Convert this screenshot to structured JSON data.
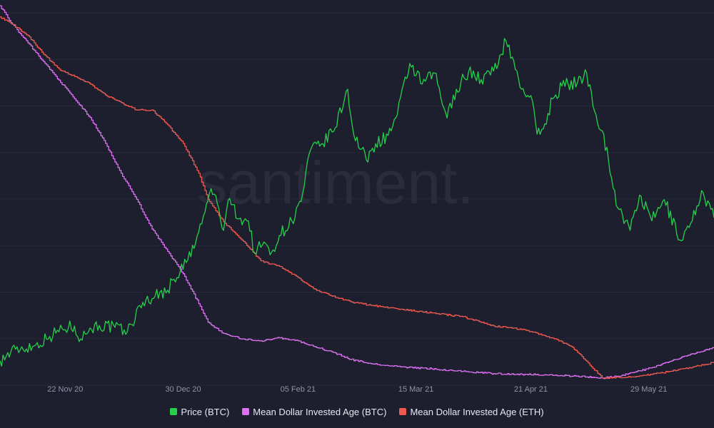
{
  "watermark": "santiment.",
  "chart_data": {
    "type": "line",
    "title": "",
    "xlabel": "",
    "ylabel": "",
    "grid": true,
    "legend_position": "bottom-center",
    "x_ticks": [
      "22 Nov 20",
      "30 Dec 20",
      "05 Feb 21",
      "15 Mar 21",
      "21 Apr 21",
      "29 May 21"
    ],
    "x_range": [
      "2020-11-01",
      "2021-06-19"
    ],
    "series": [
      {
        "name": "Price (BTC)",
        "color": "#26d04a",
        "axis_range": [
          11000,
          69000
        ],
        "points": [
          [
            "2020-11-01",
            13700
          ],
          [
            "2020-11-06",
            15500
          ],
          [
            "2020-11-12",
            16000
          ],
          [
            "2020-11-17",
            17500
          ],
          [
            "2020-11-21",
            18700
          ],
          [
            "2020-11-25",
            19100
          ],
          [
            "2020-11-27",
            17100
          ],
          [
            "2020-11-30",
            18800
          ],
          [
            "2020-12-03",
            19200
          ],
          [
            "2020-12-08",
            18900
          ],
          [
            "2020-12-12",
            18200
          ],
          [
            "2020-12-17",
            22800
          ],
          [
            "2020-12-21",
            23800
          ],
          [
            "2020-12-25",
            24700
          ],
          [
            "2020-12-27",
            26400
          ],
          [
            "2020-12-31",
            29000
          ],
          [
            "2021-01-03",
            32000
          ],
          [
            "2021-01-06",
            36800
          ],
          [
            "2021-01-08",
            40500
          ],
          [
            "2021-01-10",
            38200
          ],
          [
            "2021-01-12",
            34000
          ],
          [
            "2021-01-14",
            39000
          ],
          [
            "2021-01-17",
            35800
          ],
          [
            "2021-01-20",
            35500
          ],
          [
            "2021-01-22",
            30500
          ],
          [
            "2021-01-25",
            32200
          ],
          [
            "2021-01-27",
            30200
          ],
          [
            "2021-01-30",
            33200
          ],
          [
            "2021-02-03",
            35500
          ],
          [
            "2021-02-06",
            38500
          ],
          [
            "2021-02-09",
            46500
          ],
          [
            "2021-02-13",
            47500
          ],
          [
            "2021-02-17",
            50000
          ],
          [
            "2021-02-21",
            56000
          ],
          [
            "2021-02-23",
            48800
          ],
          [
            "2021-02-27",
            45000
          ],
          [
            "2021-03-02",
            47500
          ],
          [
            "2021-03-06",
            48800
          ],
          [
            "2021-03-09",
            52000
          ],
          [
            "2021-03-13",
            60000
          ],
          [
            "2021-03-17",
            56800
          ],
          [
            "2021-03-21",
            58500
          ],
          [
            "2021-03-25",
            51500
          ],
          [
            "2021-03-28",
            56000
          ],
          [
            "2021-04-01",
            58800
          ],
          [
            "2021-04-05",
            57500
          ],
          [
            "2021-04-09",
            58800
          ],
          [
            "2021-04-13",
            63500
          ],
          [
            "2021-04-15",
            61000
          ],
          [
            "2021-04-18",
            56000
          ],
          [
            "2021-04-21",
            55000
          ],
          [
            "2021-04-23",
            49000
          ],
          [
            "2021-04-25",
            49800
          ],
          [
            "2021-04-28",
            54500
          ],
          [
            "2021-05-01",
            56500
          ],
          [
            "2021-05-03",
            56800
          ],
          [
            "2021-05-06",
            57000
          ],
          [
            "2021-05-09",
            58500
          ],
          [
            "2021-05-12",
            52000
          ],
          [
            "2021-05-14",
            49500
          ],
          [
            "2021-05-16",
            45000
          ],
          [
            "2021-05-19",
            37500
          ],
          [
            "2021-05-23",
            34000
          ],
          [
            "2021-05-26",
            39500
          ],
          [
            "2021-05-30",
            35500
          ],
          [
            "2021-06-03",
            38800
          ],
          [
            "2021-06-08",
            32500
          ],
          [
            "2021-06-12",
            35500
          ],
          [
            "2021-06-15",
            40200
          ],
          [
            "2021-06-19",
            36000
          ]
        ]
      },
      {
        "name": "Mean Dollar Invested Age (BTC)",
        "color": "#dc72f2",
        "axis_range": [
          0,
          100
        ],
        "points": [
          [
            "2020-11-01",
            100
          ],
          [
            "2020-11-05",
            95
          ],
          [
            "2020-11-10",
            90
          ],
          [
            "2020-11-15",
            85
          ],
          [
            "2020-11-20",
            80
          ],
          [
            "2020-11-25",
            75
          ],
          [
            "2020-11-30",
            70
          ],
          [
            "2020-12-05",
            63
          ],
          [
            "2020-12-10",
            55
          ],
          [
            "2020-12-15",
            48
          ],
          [
            "2020-12-20",
            40
          ],
          [
            "2020-12-25",
            34
          ],
          [
            "2020-12-30",
            28
          ],
          [
            "2021-01-04",
            20
          ],
          [
            "2021-01-07",
            15
          ],
          [
            "2021-01-12",
            12
          ],
          [
            "2021-01-18",
            10.5
          ],
          [
            "2021-01-24",
            10
          ],
          [
            "2021-01-30",
            10.8
          ],
          [
            "2021-02-05",
            10
          ],
          [
            "2021-02-10",
            8.5
          ],
          [
            "2021-02-16",
            7
          ],
          [
            "2021-02-22",
            5
          ],
          [
            "2021-03-01",
            3.8
          ],
          [
            "2021-03-10",
            3
          ],
          [
            "2021-03-20",
            2.5
          ],
          [
            "2021-03-30",
            1.8
          ],
          [
            "2021-04-09",
            1.2
          ],
          [
            "2021-04-19",
            1
          ],
          [
            "2021-04-29",
            0.8
          ],
          [
            "2021-05-09",
            0.3
          ],
          [
            "2021-05-14",
            0
          ],
          [
            "2021-05-19",
            0.5
          ],
          [
            "2021-05-24",
            1.5
          ],
          [
            "2021-05-30",
            2.8
          ],
          [
            "2021-06-05",
            4.5
          ],
          [
            "2021-06-11",
            6.2
          ],
          [
            "2021-06-19",
            8.3
          ]
        ]
      },
      {
        "name": "Mean Dollar Invested Age (ETH)",
        "color": "#ee5a50",
        "axis_range": [
          0,
          100
        ],
        "points": [
          [
            "2020-11-01",
            97
          ],
          [
            "2020-11-05",
            95
          ],
          [
            "2020-11-10",
            92
          ],
          [
            "2020-11-15",
            87
          ],
          [
            "2020-11-20",
            83
          ],
          [
            "2020-11-25",
            81
          ],
          [
            "2020-11-30",
            79
          ],
          [
            "2020-12-05",
            76
          ],
          [
            "2020-12-10",
            74
          ],
          [
            "2020-12-15",
            72
          ],
          [
            "2020-12-20",
            72
          ],
          [
            "2020-12-25",
            68
          ],
          [
            "2020-12-30",
            63
          ],
          [
            "2021-01-04",
            55
          ],
          [
            "2021-01-07",
            48
          ],
          [
            "2021-01-12",
            42
          ],
          [
            "2021-01-18",
            37
          ],
          [
            "2021-01-24",
            31.5
          ],
          [
            "2021-01-30",
            30
          ],
          [
            "2021-02-05",
            27
          ],
          [
            "2021-02-10",
            24
          ],
          [
            "2021-02-16",
            22
          ],
          [
            "2021-02-22",
            20.5
          ],
          [
            "2021-03-01",
            19.5
          ],
          [
            "2021-03-10",
            18.5
          ],
          [
            "2021-03-20",
            17.5
          ],
          [
            "2021-03-30",
            16.5
          ],
          [
            "2021-04-09",
            14
          ],
          [
            "2021-04-19",
            13
          ],
          [
            "2021-04-29",
            10.5
          ],
          [
            "2021-05-04",
            8.5
          ],
          [
            "2021-05-09",
            4.5
          ],
          [
            "2021-05-14",
            0
          ],
          [
            "2021-05-24",
            0.3
          ],
          [
            "2021-05-30",
            1
          ],
          [
            "2021-06-05",
            1.8
          ],
          [
            "2021-06-11",
            2.8
          ],
          [
            "2021-06-19",
            4.2
          ]
        ]
      }
    ]
  }
}
